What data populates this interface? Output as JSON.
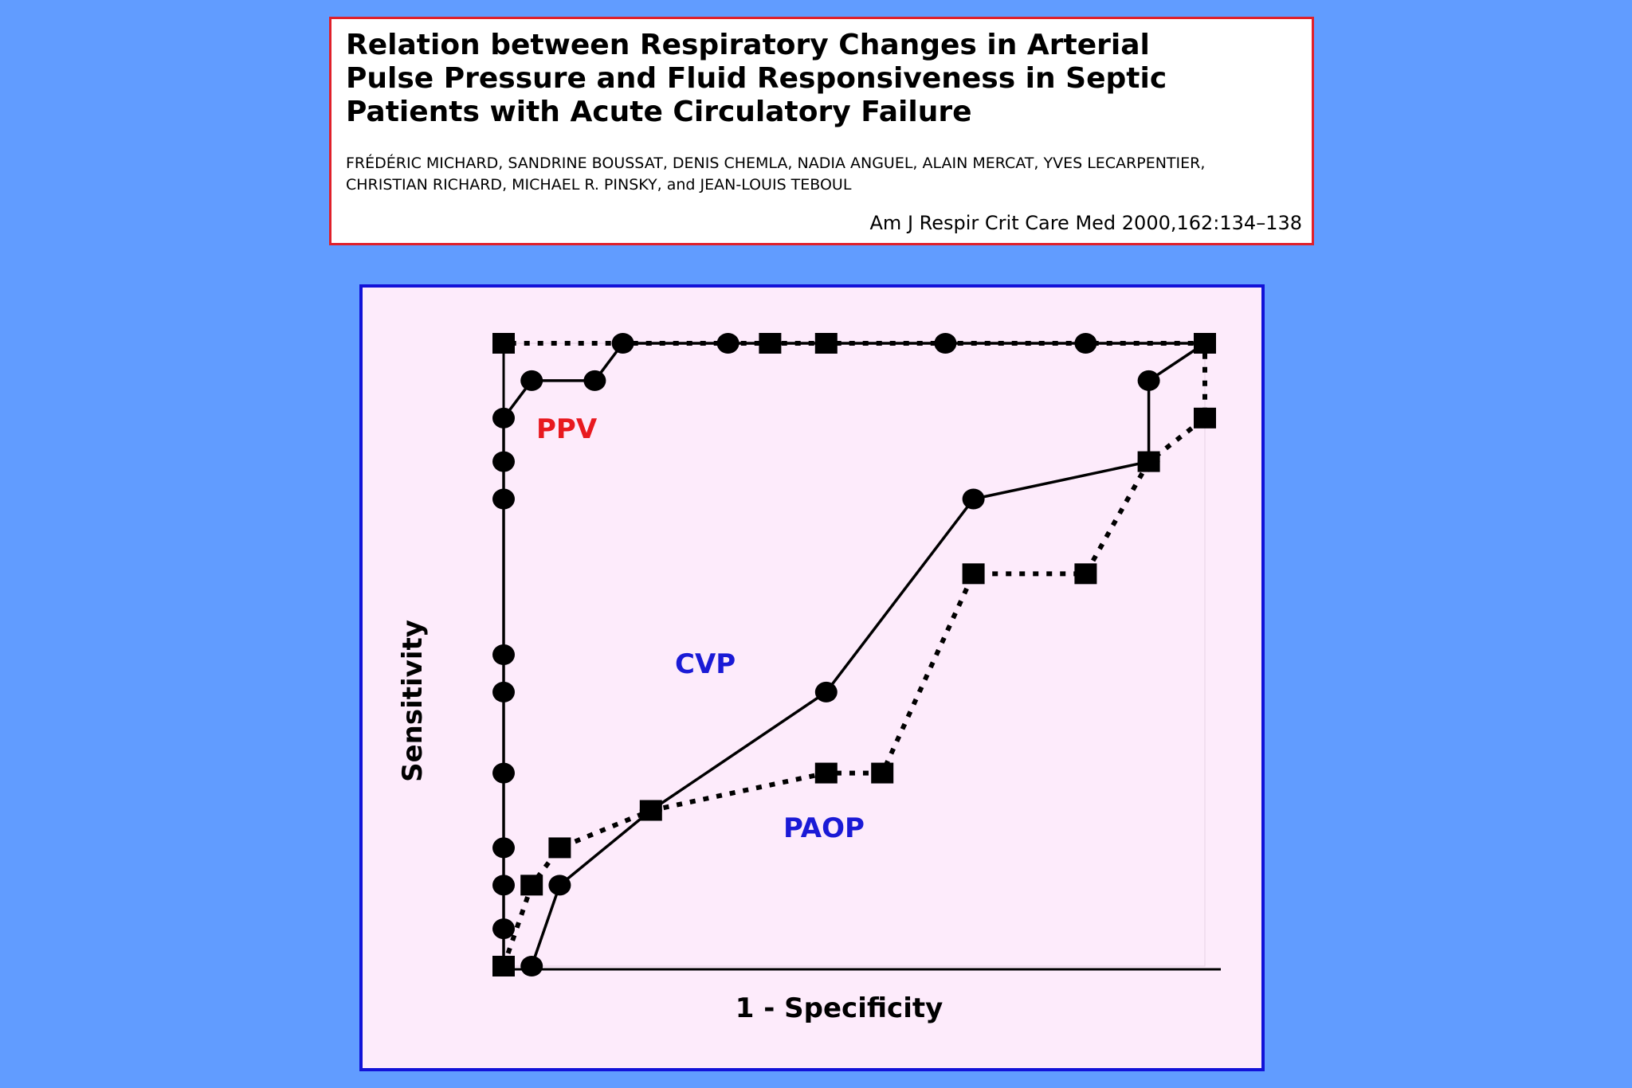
{
  "header": {
    "title_lines": [
      "Relation between Respiratory Changes in Arterial",
      "Pulse Pressure and Fluid Responsiveness in Septic",
      "Patients with Acute Circulatory Failure"
    ],
    "authors_lines": [
      "FRÉDÉRIC MICHARD, SANDRINE BOUSSAT, DENIS CHEMLA, NADIA ANGUEL, ALAIN MERCAT, YVES LECARPENTIER,",
      "CHRISTIAN RICHARD, MICHAEL R. PINSKY, and JEAN-LOUIS TEBOUL"
    ],
    "citation": "Am J Respir Crit Care Med 2000,162:134–138"
  },
  "chart_data": {
    "type": "line",
    "title": "",
    "xlabel": "1 - Specificity",
    "ylabel": "Sensitivity",
    "xlim": [
      0,
      1
    ],
    "ylim": [
      0,
      1
    ],
    "grid": false,
    "series": [
      {
        "name": "PPV",
        "label_color": "#e8191f",
        "marker": "circle",
        "line_style": "solid",
        "x": [
          0,
          0,
          0,
          0,
          0,
          0,
          0,
          0,
          0,
          0,
          0.04,
          0.13,
          0.17,
          0.32,
          0.63,
          0.83,
          1.0
        ],
        "y": [
          0,
          0.06,
          0.13,
          0.19,
          0.31,
          0.44,
          0.5,
          0.75,
          0.81,
          0.88,
          0.94,
          0.94,
          1.0,
          1.0,
          1.0,
          1.0,
          1.0
        ]
      },
      {
        "name": "CVP",
        "label_color": "#1a1ad6",
        "marker": "circle",
        "line_style": "solid",
        "x": [
          0.04,
          0.08,
          0.21,
          0.46,
          0.67,
          0.92,
          0.92,
          1.0
        ],
        "y": [
          0,
          0.13,
          0.25,
          0.44,
          0.75,
          0.81,
          0.94,
          1.0
        ]
      },
      {
        "name": "PAOP",
        "label_color": "#1a1ad6",
        "marker": "square",
        "line_style": "dotted",
        "x": [
          0,
          0.04,
          0.08,
          0.21,
          0.46,
          0.54,
          0.67,
          0.83,
          0.92,
          1.0,
          1.0,
          0.46,
          0.38,
          0.0
        ],
        "y": [
          0,
          0.13,
          0.19,
          0.25,
          0.31,
          0.31,
          0.63,
          0.63,
          0.81,
          0.88,
          1.0,
          1.0,
          1.0,
          1.0
        ]
      }
    ]
  }
}
